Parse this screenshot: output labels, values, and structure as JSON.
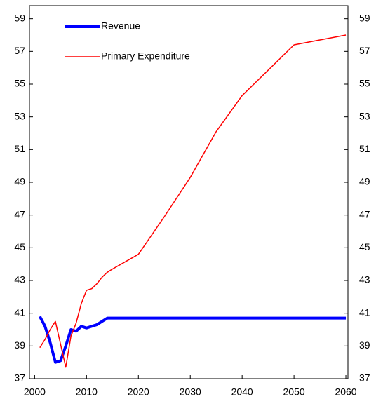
{
  "chart_data": {
    "type": "line",
    "x": [
      2001,
      2002,
      2003,
      2004,
      2005,
      2006,
      2007,
      2008,
      2009,
      2010,
      2011,
      2012,
      2013,
      2014,
      2015,
      2020,
      2025,
      2030,
      2035,
      2040,
      2050,
      2060
    ],
    "series": [
      {
        "name": "Revenue",
        "color": "#0000ff",
        "values": [
          40.8,
          40.2,
          39.2,
          38.0,
          38.1,
          39.0,
          40.0,
          39.9,
          40.2,
          40.1,
          40.2,
          40.3,
          40.5,
          40.7,
          40.7,
          40.7,
          40.7,
          40.7,
          40.7,
          40.7,
          40.7,
          40.7
        ]
      },
      {
        "name": "Primary Expenditure",
        "color": "#ff0000",
        "values": [
          38.9,
          39.4,
          40.0,
          40.5,
          39.1,
          37.7,
          39.6,
          40.4,
          41.6,
          42.4,
          42.5,
          42.8,
          43.2,
          43.5,
          43.7,
          44.6,
          46.9,
          49.3,
          52.1,
          54.3,
          57.4,
          58.0
        ]
      }
    ],
    "xlim": [
      1999,
      2060.4
    ],
    "xticks": [
      2000,
      2010,
      2020,
      2030,
      2040,
      2050,
      2060
    ],
    "ylim": [
      37,
      59.8
    ],
    "yticks": [
      37,
      39,
      41,
      43,
      45,
      47,
      49,
      51,
      53,
      55,
      57,
      59
    ],
    "y2lim": [
      37,
      59.8
    ],
    "y2ticks": [
      37,
      39,
      41,
      43,
      45,
      47,
      49,
      51,
      53,
      55,
      57,
      59
    ]
  }
}
